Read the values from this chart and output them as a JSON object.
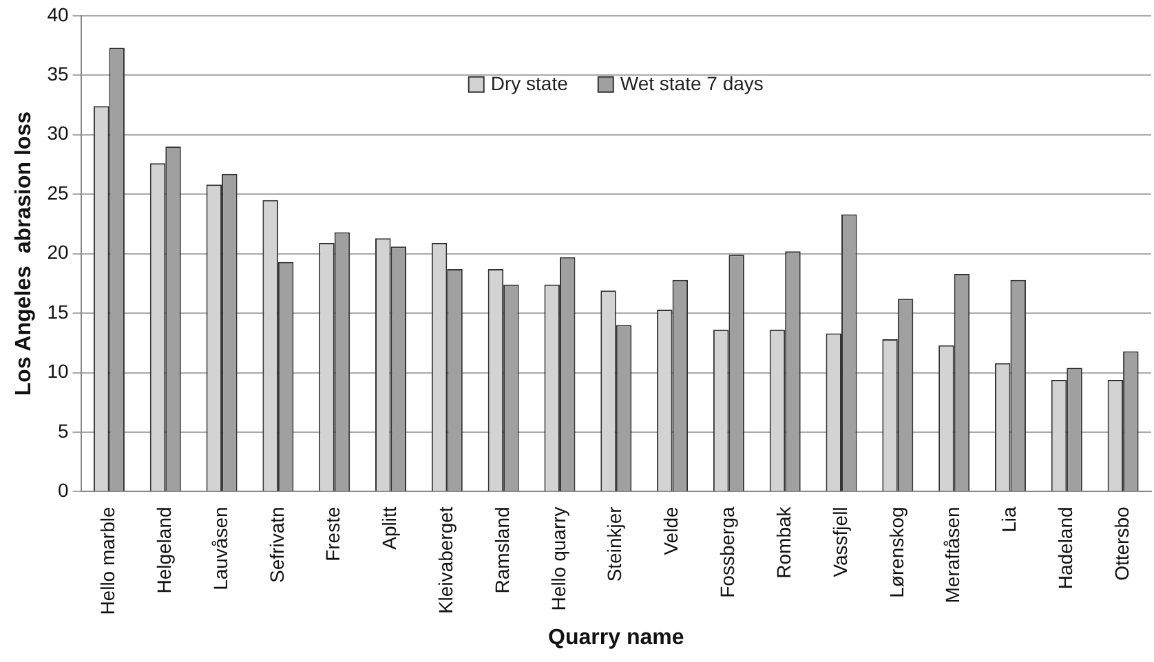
{
  "chart_data": {
    "type": "bar",
    "xlabel": "Quarry name",
    "ylabel": "Los Angeles  abrasion loss",
    "categories": [
      "Hello marble",
      "Helgeland",
      "Lauvåsen",
      "Sefrivatn",
      "Freste",
      "Aplitt",
      "Kleivaberget",
      "Ramsland",
      "Hello quarry",
      "Steinkjer",
      "Velde",
      "Fossberga",
      "Rombak",
      "Vassfjell",
      "Lørenskog",
      "Meraftåsen",
      "Lia",
      "Hadeland",
      "Ottersbo"
    ],
    "series": [
      {
        "name": "Dry state",
        "color": "#d3d3d3",
        "values": [
          32.4,
          27.6,
          25.8,
          24.5,
          20.9,
          21.3,
          20.9,
          18.7,
          17.4,
          16.9,
          15.3,
          13.6,
          13.6,
          13.3,
          12.8,
          12.3,
          10.8,
          9.4,
          9.4
        ]
      },
      {
        "name": "Wet state 7 days",
        "color": "#a0a0a0",
        "values": [
          37.3,
          29.0,
          26.7,
          19.3,
          21.8,
          20.6,
          18.7,
          17.4,
          19.7,
          14.0,
          17.8,
          19.9,
          20.2,
          23.3,
          16.2,
          18.3,
          17.8,
          10.4,
          11.8
        ]
      }
    ],
    "ylim": [
      0,
      40
    ],
    "yticks": [
      0,
      5,
      10,
      15,
      20,
      25,
      30,
      35,
      40
    ],
    "grid": "y",
    "legend": "top"
  }
}
